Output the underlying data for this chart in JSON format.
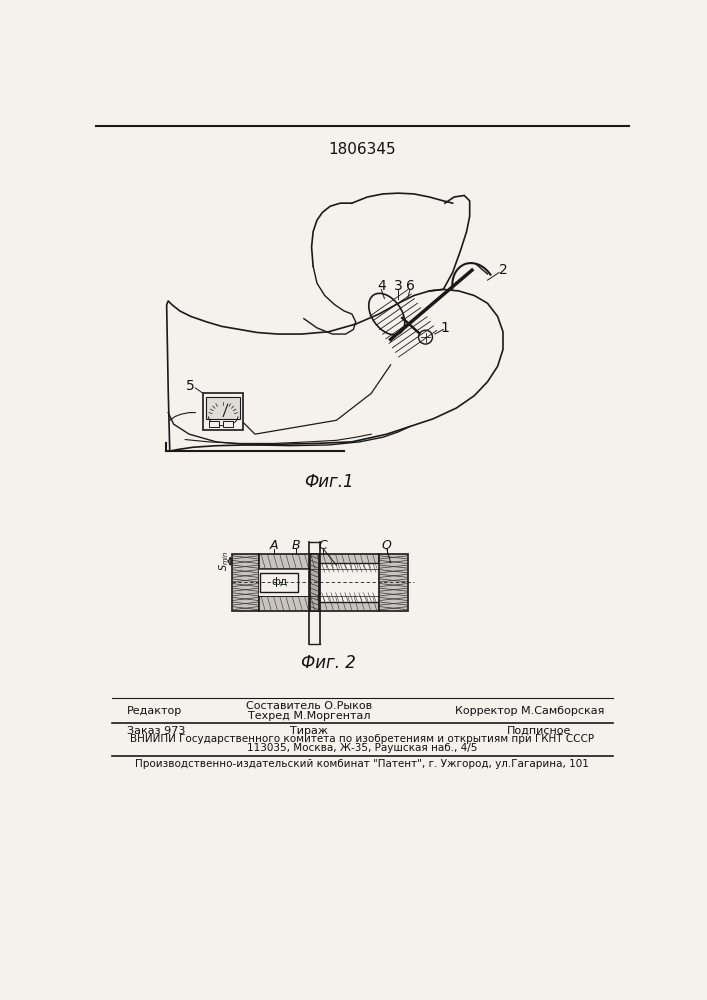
{
  "patent_number": "1806345",
  "fig1_caption": "Фиг.1",
  "fig2_caption": "Фиг. 2",
  "editor_label": "Редактор",
  "compiler_label": "Составитель О.Рыков",
  "techred_label": "Техред М.Моргентал",
  "corrector_label": "Корректор М.Самборская",
  "order_label": "Заказ 973",
  "print_run_label": "Тираж",
  "subscription_label": "Подписное",
  "vniiipi_line1": "ВНИИПИ Государственного комитета по изобретениям и открытиям при ГКНТ СССР",
  "vniiipi_line2": "113035, Москва, Ж-35, Раушская наб., 4/5",
  "production_line": "Производственно-издательский комбинат \"Патент\", г. Ужгород, ул.Гагарина, 101",
  "bg_color": "#f5f2ee",
  "line_color": "#1a1a1a",
  "text_color": "#111111",
  "hatch_color": "#333333"
}
